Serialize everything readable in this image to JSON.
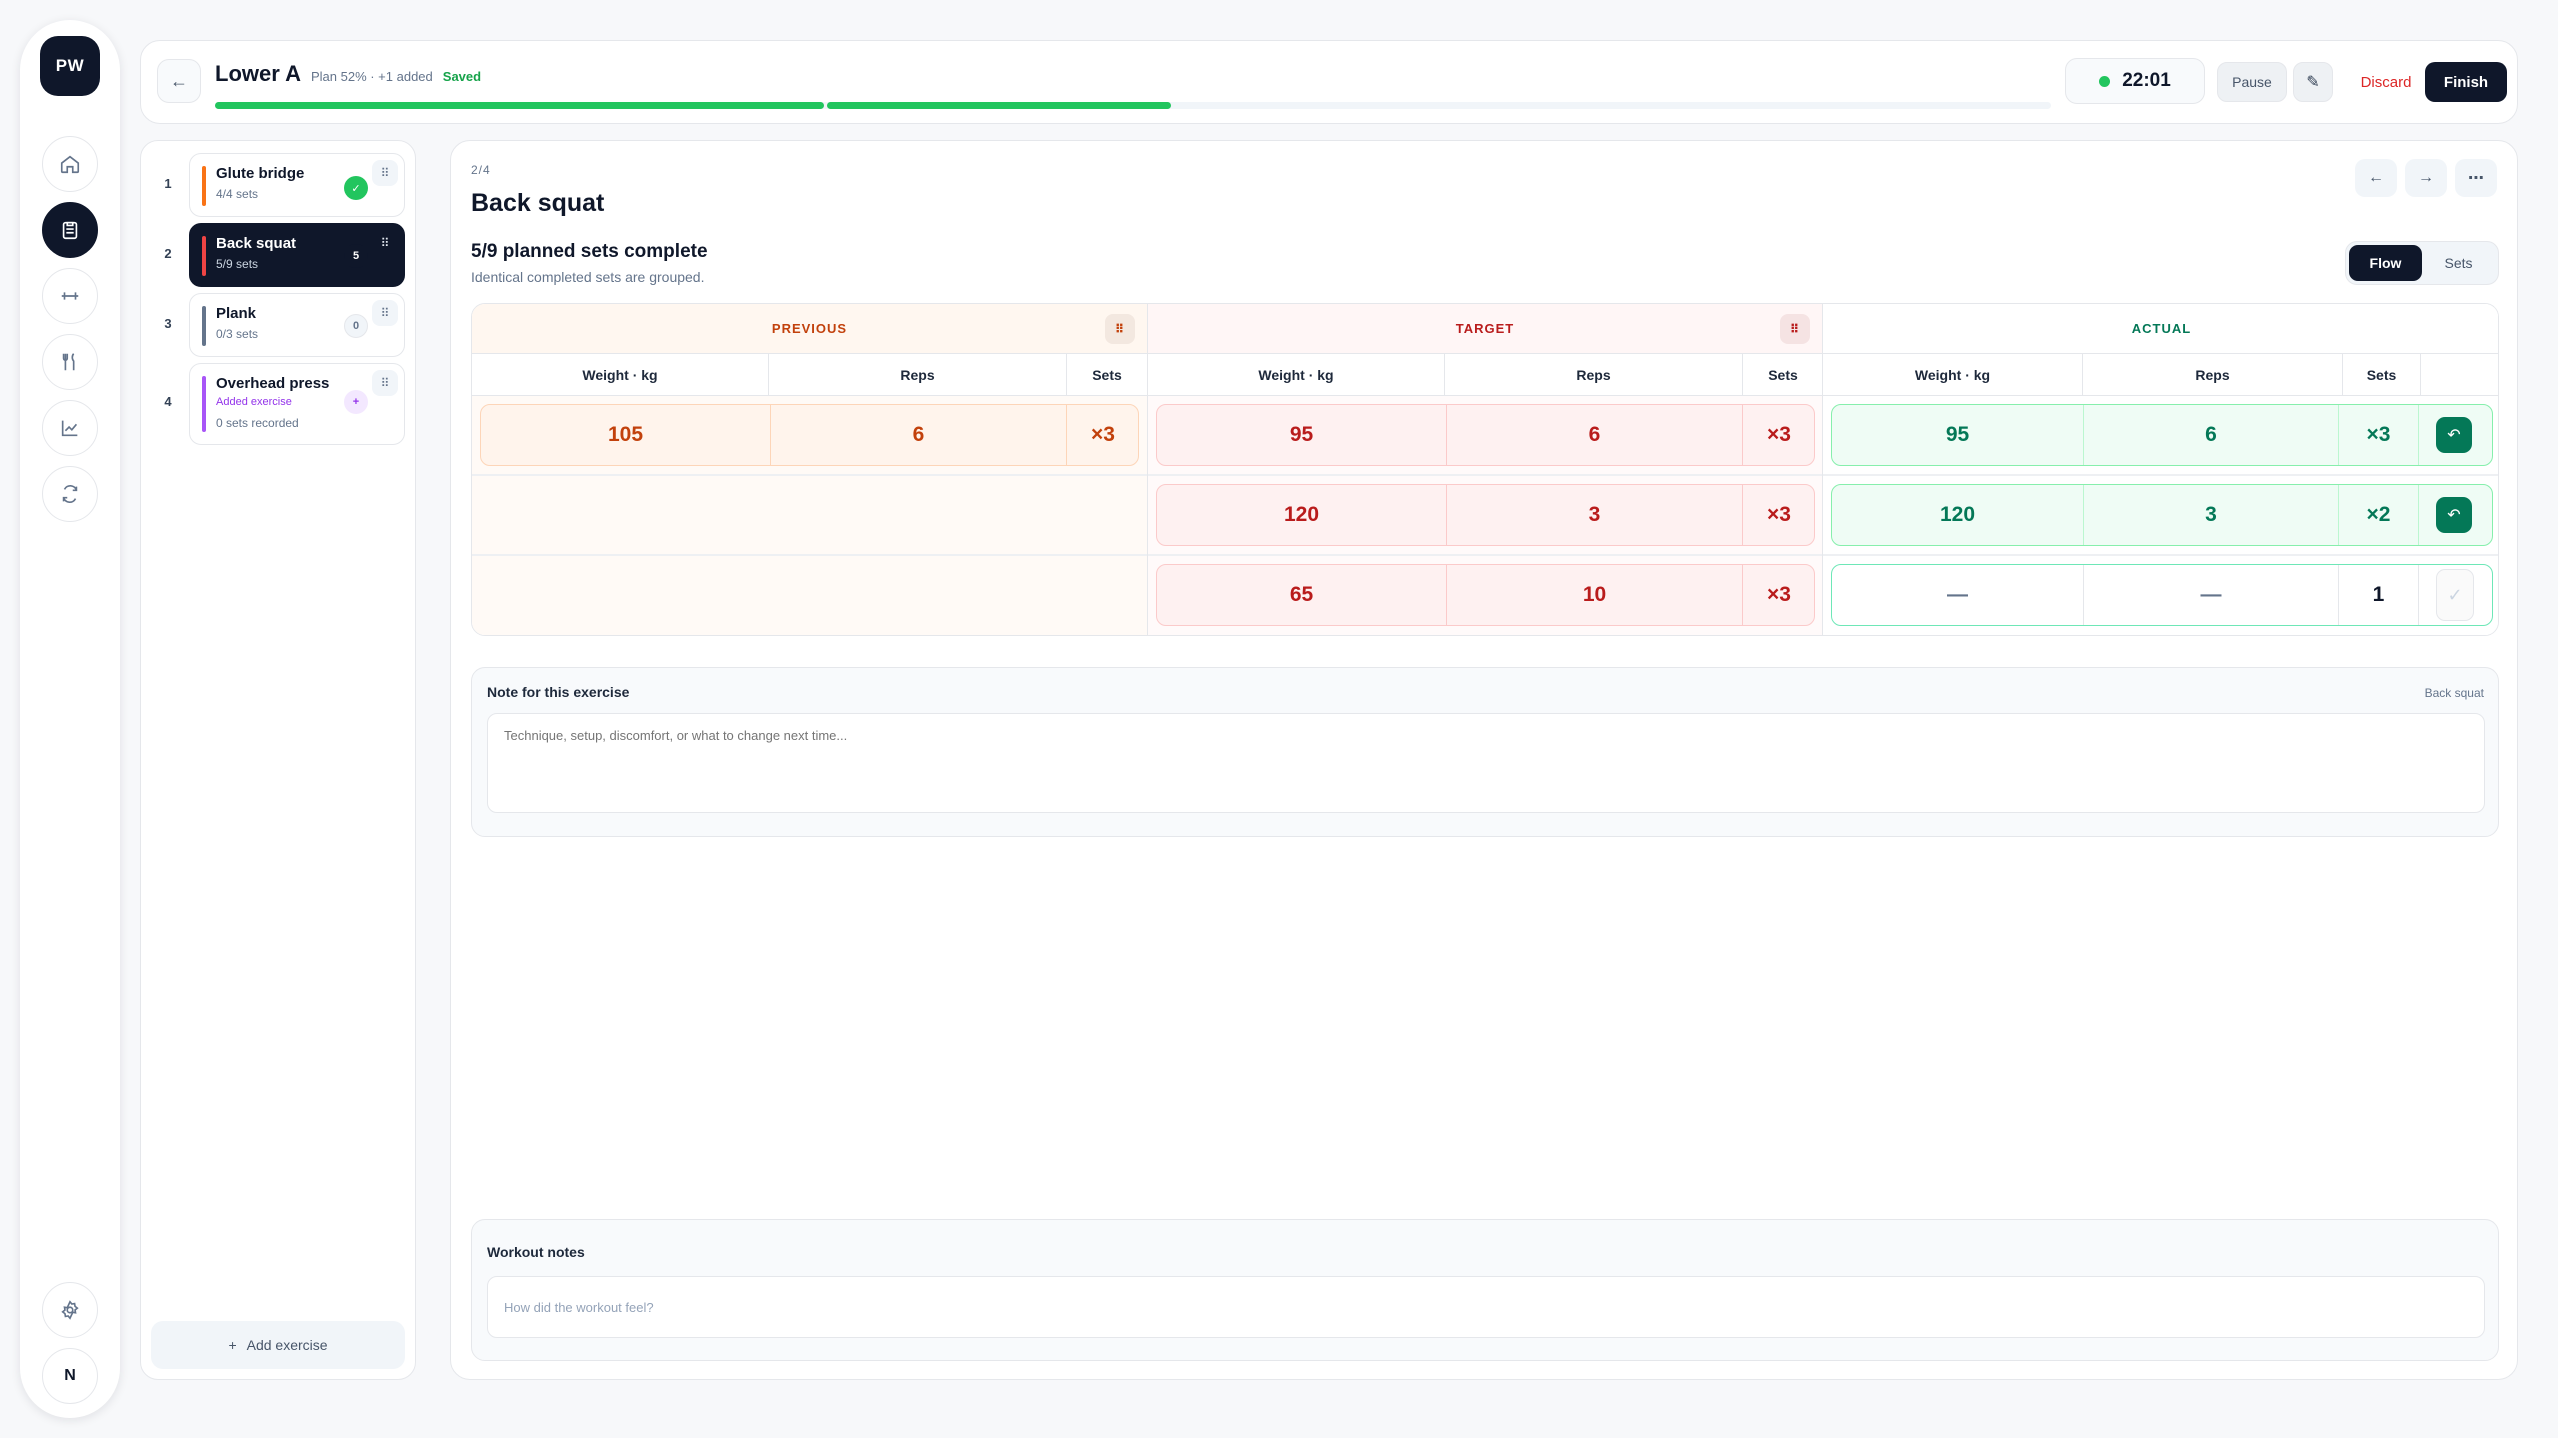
{
  "rail": {
    "logo": "PW",
    "items": [
      {
        "name": "home-icon"
      },
      {
        "name": "clipboard-icon",
        "active": true
      },
      {
        "name": "dumbbell-icon"
      },
      {
        "name": "fork-knife-icon"
      },
      {
        "name": "chart-icon"
      },
      {
        "name": "sync-icon"
      }
    ],
    "settings_icon": "gear-icon",
    "avatar_initial": "N"
  },
  "header": {
    "back_label": "←",
    "title": "Lower A",
    "meta": "Plan 52% · +1 added",
    "saved": "Saved",
    "progress": {
      "plan_fraction": 0.52,
      "segments": [
        0.333,
        0.52
      ]
    },
    "timer": "22:01",
    "pause_label": "Pause",
    "edit_label": "✎",
    "discard_label": "Discard",
    "finish_label": "Finish"
  },
  "exercises": [
    {
      "num": "1",
      "name": "Glute bridge",
      "sub": "4/4 sets",
      "color": "#f97316",
      "badge": "✓",
      "state": "done"
    },
    {
      "num": "2",
      "name": "Back squat",
      "sub": "5/9 sets",
      "color": "#ef4444",
      "badge": "5",
      "state": "active"
    },
    {
      "num": "3",
      "name": "Plank",
      "sub": "0/3 sets",
      "color": "#64748b",
      "badge": "0",
      "state": "pending"
    },
    {
      "num": "4",
      "name": "Overhead press",
      "added": "Added exercise",
      "sub": "0 sets recorded",
      "color": "#a855f7",
      "badge": "+",
      "state": "added"
    }
  ],
  "add_exercise_label": "Add exercise",
  "main": {
    "step": "2/4",
    "title": "Back squat",
    "prev_label": "←",
    "next_label": "→",
    "more_label": "⋯",
    "sets_complete": "5/9 planned sets complete",
    "grouped_note": "Identical completed sets are grouped.",
    "toggle": [
      "Flow",
      "Sets"
    ],
    "columns": {
      "previous": "PREVIOUS",
      "target": "TARGET",
      "actual": "ACTUAL"
    },
    "subheaders": {
      "weight": "Weight · kg",
      "reps": "Reps",
      "sets": "Sets"
    },
    "previous_rows": [
      {
        "weight": "105",
        "reps": "6",
        "sets": "×3"
      }
    ],
    "target_rows": [
      {
        "weight": "95",
        "reps": "6",
        "sets": "×3"
      },
      {
        "weight": "120",
        "reps": "3",
        "sets": "×3"
      },
      {
        "weight": "65",
        "reps": "10",
        "sets": "×3"
      }
    ],
    "actual_rows": [
      {
        "weight": "95",
        "reps": "6",
        "sets": "×3",
        "state": "done"
      },
      {
        "weight": "120",
        "reps": "3",
        "sets": "×2",
        "state": "done"
      },
      {
        "weight": "—",
        "reps": "—",
        "sets": "1",
        "state": "pending"
      }
    ],
    "note": {
      "label": "Note for this exercise",
      "tag": "Back squat",
      "placeholder": "Technique, setup, discomfort, or what to change next time..."
    },
    "workout_notes": {
      "label": "Workout notes",
      "placeholder": "How did the workout feel?"
    }
  }
}
